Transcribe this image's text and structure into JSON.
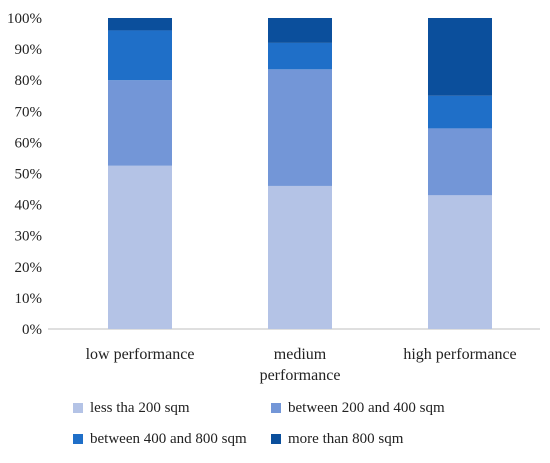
{
  "chart_data": {
    "type": "bar",
    "stacked": true,
    "percent_stacked": true,
    "categories": [
      [
        "low performance"
      ],
      [
        "medium",
        "performance"
      ],
      [
        "high performance"
      ]
    ],
    "series": [
      {
        "name": "less tha 200 sqm",
        "color": "#b4c3e6",
        "values": [
          52.5,
          46,
          43
        ]
      },
      {
        "name": "between 200 and 400 sqm",
        "color": "#7396d7",
        "values": [
          27.5,
          37.5,
          21.5
        ]
      },
      {
        "name": "between 400 and 800 sqm",
        "color": "#1f6fc8",
        "values": [
          16,
          8.5,
          10.5
        ]
      },
      {
        "name": "more than 800 sqm",
        "color": "#0b4f9c",
        "values": [
          4,
          8,
          25
        ]
      }
    ],
    "yticks": [
      "0%",
      "10%",
      "20%",
      "30%",
      "40%",
      "50%",
      "60%",
      "70%",
      "80%",
      "90%",
      "100%"
    ],
    "ylim": [
      0,
      100
    ],
    "grid": false,
    "legend_position": "bottom"
  }
}
